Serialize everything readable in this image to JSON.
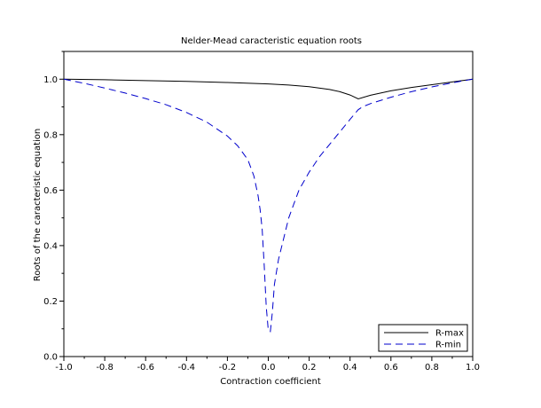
{
  "chart_data": {
    "type": "line",
    "title": "Nelder-Mead caracteristic equation roots",
    "xlabel": "Contraction coefficient",
    "ylabel": "Roots of the caracteristic equation",
    "xlim": [
      -1.0,
      1.0
    ],
    "ylim": [
      0.0,
      1.1
    ],
    "xticks": [
      "-1.0",
      "-0.8",
      "-0.6",
      "-0.4",
      "-0.2",
      "0.0",
      "0.2",
      "0.4",
      "0.6",
      "0.8",
      "1.0"
    ],
    "yticks": [
      "0.0",
      "0.2",
      "0.4",
      "0.6",
      "0.8",
      "1.0"
    ],
    "legend": {
      "position": "bottom-right",
      "entries": [
        "R-max",
        "R-min"
      ]
    },
    "series": [
      {
        "name": "R-max",
        "style": "solid",
        "color": "#000000",
        "x": [
          -1.0,
          -0.8,
          -0.6,
          -0.4,
          -0.2,
          0.0,
          0.1,
          0.2,
          0.3,
          0.35,
          0.4,
          0.44,
          0.5,
          0.6,
          0.7,
          0.8,
          0.9,
          1.0
        ],
        "y": [
          1.0,
          0.998,
          0.995,
          0.992,
          0.988,
          0.983,
          0.979,
          0.973,
          0.963,
          0.955,
          0.943,
          0.929,
          0.942,
          0.958,
          0.97,
          0.98,
          0.99,
          1.0
        ]
      },
      {
        "name": "R-min",
        "style": "dashed",
        "color": "#0000cc",
        "x": [
          -1.0,
          -0.9,
          -0.8,
          -0.7,
          -0.6,
          -0.5,
          -0.4,
          -0.3,
          -0.2,
          -0.15,
          -0.1,
          -0.07,
          -0.05,
          -0.04,
          -0.03,
          -0.02,
          -0.01,
          0.0,
          0.01,
          0.02,
          0.03,
          0.05,
          0.08,
          0.1,
          0.15,
          0.2,
          0.25,
          0.3,
          0.35,
          0.4,
          0.44,
          0.46,
          0.5,
          0.6,
          0.7,
          0.8,
          0.9,
          1.0
        ],
        "y": [
          1.0,
          0.985,
          0.968,
          0.95,
          0.93,
          0.908,
          0.88,
          0.845,
          0.795,
          0.76,
          0.71,
          0.65,
          0.58,
          0.53,
          0.46,
          0.33,
          0.18,
          0.095,
          0.09,
          0.16,
          0.26,
          0.35,
          0.44,
          0.5,
          0.6,
          0.665,
          0.72,
          0.765,
          0.81,
          0.855,
          0.89,
          0.9,
          0.912,
          0.935,
          0.955,
          0.972,
          0.987,
          1.0
        ]
      }
    ]
  }
}
